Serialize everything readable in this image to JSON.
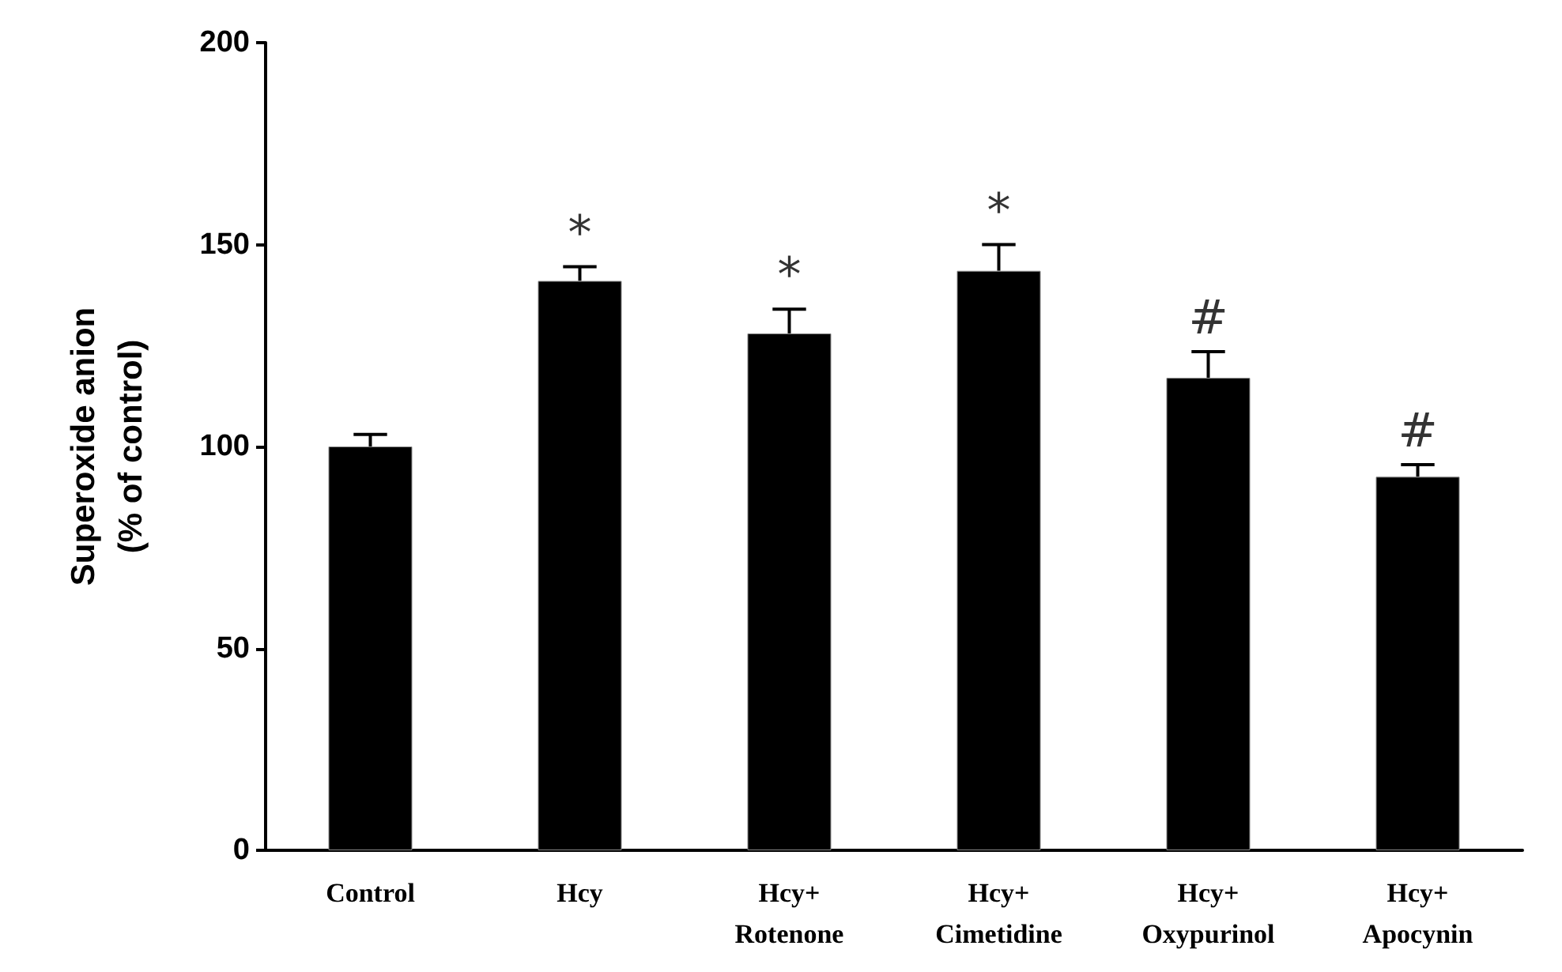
{
  "chart_data": {
    "type": "bar",
    "ylabel": "Superoxide anion\n(% of control)",
    "categories": [
      "Control",
      "Hcy",
      "Hcy+\nRotenone",
      "Hcy+\nCimetidine",
      "Hcy+\nOxypurinol",
      "Hcy+\nApocynin"
    ],
    "values": [
      100,
      141,
      128,
      143.5,
      117,
      92.5
    ],
    "errors": [
      3,
      3.5,
      6,
      6.5,
      6.5,
      3
    ],
    "color": "#000000",
    "ylim": [
      0,
      200
    ],
    "yticks": [
      0,
      50,
      100,
      150,
      200
    ],
    "grid": false,
    "annotations": [
      {
        "text": "*",
        "x": "Hcy",
        "y": 144.5
      },
      {
        "text": "*",
        "x": "Hcy+\nRotenone",
        "y": 134
      },
      {
        "text": "*",
        "x": "Hcy+\nCimetidine",
        "y": 150
      },
      {
        "text": "#",
        "x": "Hcy+\nOxypurinol",
        "y": 123.5
      },
      {
        "text": "#",
        "x": "Hcy+\nApocynin",
        "y": 95.5
      }
    ]
  }
}
